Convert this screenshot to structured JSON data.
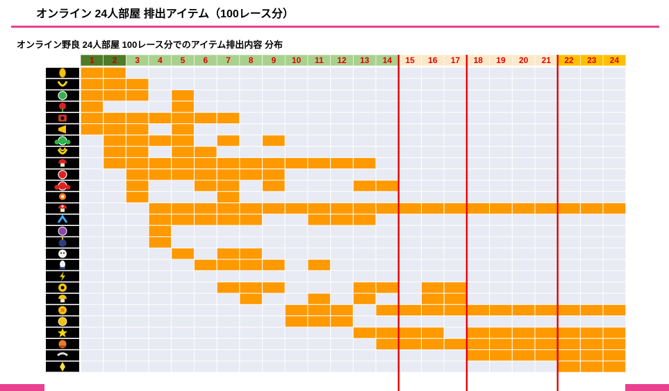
{
  "page": {
    "title": "オンライン 24人部屋 排出アイテム（100レース分）"
  },
  "colors": {
    "accent_rule": "#e9418f",
    "filled_cell": "#ff9900",
    "empty_cell": "#e8eaf4",
    "divider": "#e60000",
    "header_dark": "#4f7a28",
    "header_light": "#a9d18e",
    "header_peach": "#fde9c9",
    "header_gold": "#ffc000",
    "header_text_dark": "#c00000",
    "header_text_red": "#e00000"
  },
  "chart_data": {
    "type": "heatmap",
    "title": "オンライン野良 24人部屋 100レース分でのアイテム排出内容 分布",
    "x_labels": [
      "1",
      "2",
      "3",
      "4",
      "5",
      "6",
      "7",
      "8",
      "9",
      "10",
      "11",
      "12",
      "13",
      "14",
      "15",
      "16",
      "17",
      "18",
      "19",
      "20",
      "21",
      "22",
      "23",
      "24"
    ],
    "header_groups": [
      {
        "from": 1,
        "to": 2,
        "color": "header_dark"
      },
      {
        "from": 3,
        "to": 14,
        "color": "header_light"
      },
      {
        "from": 15,
        "to": 21,
        "color": "header_peach"
      },
      {
        "from": 22,
        "to": 24,
        "color": "header_gold"
      }
    ],
    "dividers_after": [
      14,
      17,
      21
    ],
    "items": [
      {
        "icon": "coin-icon",
        "ranks": [
          1,
          2
        ]
      },
      {
        "icon": "banana-icon",
        "ranks": [
          1,
          2,
          3
        ]
      },
      {
        "icon": "green-shell-icon",
        "ranks": [
          1,
          2,
          3,
          5
        ]
      },
      {
        "icon": "piranha-plant-icon",
        "ranks": [
          1,
          5
        ]
      },
      {
        "icon": "bomb-icon",
        "ranks": [
          1,
          2,
          3,
          4,
          5,
          6,
          7
        ]
      },
      {
        "icon": "super-horn-icon",
        "ranks": [
          1,
          2,
          3,
          5
        ]
      },
      {
        "icon": "triple-green-shells-icon",
        "ranks": [
          2,
          3,
          4,
          5,
          7,
          9
        ]
      },
      {
        "icon": "triple-bananas-icon",
        "ranks": [
          2,
          3,
          5,
          6
        ]
      },
      {
        "icon": "mushroom-icon",
        "ranks": [
          2,
          3,
          4,
          5,
          6,
          7,
          8,
          9,
          10,
          11,
          12,
          13
        ]
      },
      {
        "icon": "red-shell-icon",
        "ranks": [
          3,
          4,
          5,
          6,
          7,
          8,
          9
        ]
      },
      {
        "icon": "triple-red-shells-icon",
        "ranks": [
          3,
          6,
          7,
          9,
          13,
          14
        ]
      },
      {
        "icon": "fire-flower-icon",
        "ranks": [
          3,
          7
        ]
      },
      {
        "icon": "triple-mushrooms-icon",
        "ranks": [
          4,
          5,
          6,
          7,
          8,
          9,
          10,
          11,
          12,
          13,
          14,
          15,
          16,
          17,
          18,
          19,
          20,
          21,
          22,
          23,
          24
        ]
      },
      {
        "icon": "boomerang-icon",
        "ranks": [
          4,
          5,
          6,
          7,
          8,
          11,
          12,
          13
        ]
      },
      {
        "icon": "crazy-eight-icon",
        "ranks": [
          4
        ]
      },
      {
        "icon": "bob-omb-icon",
        "ranks": [
          4
        ]
      },
      {
        "icon": "boo-icon",
        "ranks": [
          5,
          7,
          8
        ]
      },
      {
        "icon": "blooper-icon",
        "ranks": [
          6,
          7,
          8,
          9,
          11
        ]
      },
      {
        "icon": "lightning-icon",
        "ranks": []
      },
      {
        "icon": "bullet-bill-icon",
        "ranks": [
          7,
          8,
          9,
          13,
          14,
          16,
          17
        ]
      },
      {
        "icon": "golden-mushroom-icon",
        "ranks": [
          8,
          11,
          13,
          16,
          17
        ]
      },
      {
        "icon": "spiny-shell-icon",
        "ranks": [
          10,
          11,
          12,
          14,
          15,
          16,
          17,
          18,
          19,
          20,
          21,
          22,
          23,
          24
        ]
      },
      {
        "icon": "question-block-icon",
        "ranks": [
          10,
          11,
          12
        ]
      },
      {
        "icon": "super-star-icon",
        "ranks": [
          13,
          14,
          15,
          16,
          18,
          19,
          20,
          21,
          22,
          23,
          24
        ]
      },
      {
        "icon": "bullet-icon",
        "ranks": [
          14,
          15,
          16,
          17,
          18,
          19,
          20,
          21,
          22,
          23,
          24
        ]
      },
      {
        "icon": "shock-icon",
        "ranks": [
          18,
          19,
          20,
          21,
          22,
          23,
          24
        ]
      },
      {
        "icon": "mega-icon",
        "ranks": [
          22,
          23,
          24
        ]
      }
    ]
  }
}
